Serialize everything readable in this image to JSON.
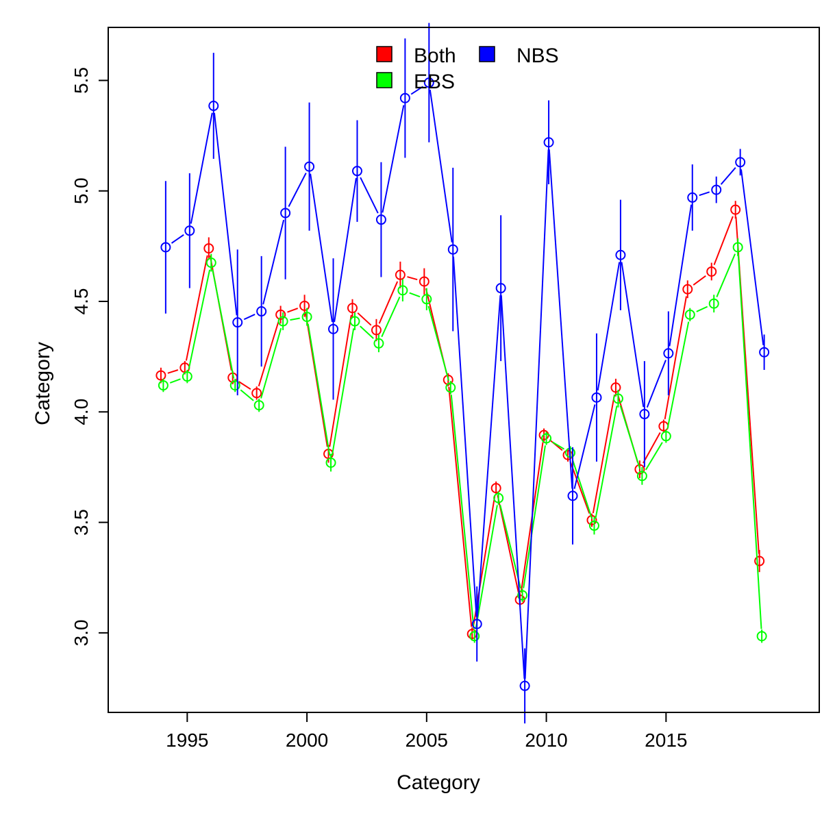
{
  "chart_data": {
    "type": "line",
    "xlabel": "Category",
    "ylabel": "Category",
    "xlim": [
      1991.7,
      2021.4
    ],
    "ylim": [
      2.64,
      5.74
    ],
    "x_ticks": [
      1995,
      2000,
      2005,
      2010,
      2015
    ],
    "y_ticks": [
      3.0,
      3.5,
      4.0,
      4.5,
      5.0,
      5.5
    ],
    "y_tick_labels": [
      "3.0",
      "3.5",
      "4.0",
      "4.5",
      "5.0",
      "5.5"
    ],
    "grid": false,
    "legend_placement": "top-center",
    "x": [
      1994,
      1995,
      1996,
      1997,
      1998,
      1999,
      2000,
      2001,
      2002,
      2003,
      2004,
      2005,
      2006,
      2007,
      2008,
      2009,
      2010,
      2011,
      2012,
      2013,
      2014,
      2015,
      2016,
      2017,
      2018,
      2019
    ],
    "series": [
      {
        "name": "Both",
        "color": "#ff0000",
        "x_offset": -0.1,
        "values": [
          4.165,
          4.2,
          4.74,
          4.155,
          4.085,
          4.44,
          4.48,
          3.81,
          4.47,
          4.37,
          4.62,
          4.59,
          4.145,
          2.995,
          3.655,
          3.15,
          3.895,
          3.805,
          3.51,
          4.11,
          3.74,
          3.935,
          4.555,
          4.635,
          4.915,
          3.325
        ],
        "error": [
          0.035,
          0.03,
          0.05,
          0.03,
          0.03,
          0.04,
          0.05,
          0.04,
          0.04,
          0.05,
          0.06,
          0.06,
          0.03,
          0.03,
          0.03,
          0.03,
          0.03,
          0.03,
          0.03,
          0.04,
          0.04,
          0.03,
          0.04,
          0.04,
          0.04,
          0.05
        ]
      },
      {
        "name": "EBS",
        "color": "#00ff00",
        "x_offset": 0.0,
        "values": [
          4.12,
          4.16,
          4.675,
          4.12,
          4.03,
          4.41,
          4.43,
          3.77,
          4.41,
          4.31,
          4.55,
          4.51,
          4.11,
          2.985,
          3.61,
          3.17,
          3.88,
          3.815,
          3.485,
          4.06,
          3.71,
          3.89,
          4.44,
          4.49,
          4.745,
          2.985
        ],
        "error": [
          0.03,
          0.03,
          0.04,
          0.03,
          0.03,
          0.04,
          0.04,
          0.04,
          0.04,
          0.04,
          0.05,
          0.05,
          0.03,
          0.03,
          0.03,
          0.03,
          0.03,
          0.03,
          0.04,
          0.04,
          0.04,
          0.03,
          0.03,
          0.04,
          0.04,
          0.03
        ]
      },
      {
        "name": "NBS",
        "color": "#0000ff",
        "x_offset": 0.1,
        "values": [
          4.745,
          4.82,
          5.385,
          4.405,
          4.455,
          4.9,
          5.11,
          4.375,
          5.09,
          4.87,
          5.42,
          5.49,
          4.735,
          3.04,
          4.56,
          2.76,
          5.22,
          3.62,
          4.065,
          4.71,
          3.99,
          4.265,
          4.97,
          5.005,
          5.13,
          4.27
        ],
        "error": [
          0.3,
          0.26,
          0.24,
          0.33,
          0.25,
          0.3,
          0.29,
          0.32,
          0.23,
          0.26,
          0.27,
          0.27,
          0.37,
          0.17,
          0.33,
          0.17,
          0.19,
          0.22,
          0.29,
          0.25,
          0.24,
          0.19,
          0.15,
          0.06,
          0.06,
          0.08
        ]
      }
    ]
  }
}
